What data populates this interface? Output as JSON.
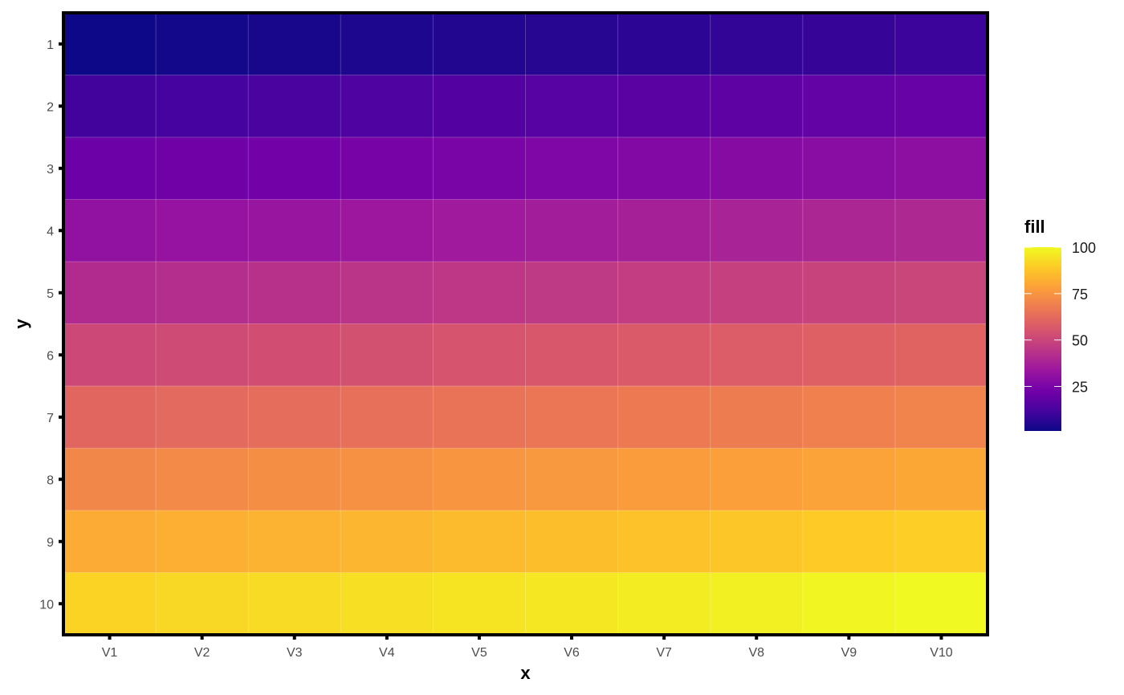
{
  "chart_data": {
    "type": "heatmap",
    "xlabel": "x",
    "ylabel": "y",
    "x_categories": [
      "V1",
      "V2",
      "V3",
      "V4",
      "V5",
      "V6",
      "V7",
      "V8",
      "V9",
      "V10"
    ],
    "y_categories": [
      "1",
      "2",
      "3",
      "4",
      "5",
      "6",
      "7",
      "8",
      "9",
      "10"
    ],
    "values": [
      [
        1,
        2,
        3,
        4,
        5,
        6,
        7,
        8,
        9,
        10
      ],
      [
        11,
        12,
        13,
        14,
        15,
        16,
        17,
        18,
        19,
        20
      ],
      [
        21,
        22,
        23,
        24,
        25,
        26,
        27,
        28,
        29,
        30
      ],
      [
        31,
        32,
        33,
        34,
        35,
        36,
        37,
        38,
        39,
        40
      ],
      [
        41,
        42,
        43,
        44,
        45,
        46,
        47,
        48,
        49,
        50
      ],
      [
        51,
        52,
        53,
        54,
        55,
        56,
        57,
        58,
        59,
        60
      ],
      [
        61,
        62,
        63,
        64,
        65,
        66,
        67,
        68,
        69,
        70
      ],
      [
        71,
        72,
        73,
        74,
        75,
        76,
        77,
        78,
        79,
        80
      ],
      [
        81,
        82,
        83,
        84,
        85,
        86,
        87,
        88,
        89,
        90
      ],
      [
        91,
        92,
        93,
        94,
        95,
        96,
        97,
        98,
        99,
        100
      ]
    ],
    "colorscale": "plasma",
    "colorscale_stops": [
      "#0d0887",
      "#47039f",
      "#7301a8",
      "#9c179e",
      "#bd3786",
      "#d8576b",
      "#ed7953",
      "#fb9f3a",
      "#fdca26",
      "#f0f921"
    ],
    "value_range": [
      1,
      100
    ],
    "legend": {
      "title": "fill",
      "ticks": [
        25,
        50,
        75,
        100
      ],
      "position": "right"
    },
    "grid": true
  }
}
